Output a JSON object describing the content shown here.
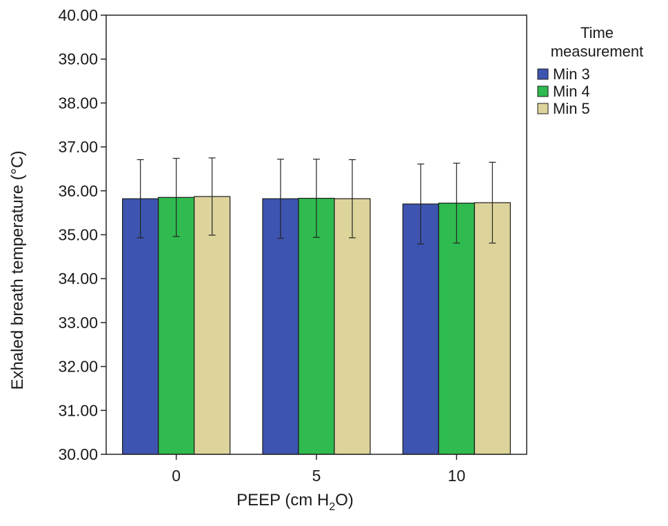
{
  "chart_data": {
    "type": "bar",
    "title": "",
    "xlabel": "PEEP (cm H2O)",
    "xlabel_parts": {
      "main": "PEEP (cm H",
      "sub": "2",
      "tail": "O)"
    },
    "ylabel": "Exhaled breath temperature (°C)",
    "ylim": [
      30,
      40
    ],
    "yticks": [
      "30.00",
      "31.00",
      "32.00",
      "33.00",
      "34.00",
      "35.00",
      "36.00",
      "37.00",
      "38.00",
      "39.00",
      "40.00"
    ],
    "categories": [
      "0",
      "5",
      "10"
    ],
    "series": [
      {
        "name": "Min 3",
        "color": "#3d55b0",
        "values": [
          35.82,
          35.82,
          35.7
        ],
        "error": [
          0.89,
          0.9,
          0.91
        ]
      },
      {
        "name": "Min 4",
        "color": "#2fbb4f",
        "values": [
          35.85,
          35.83,
          35.72
        ],
        "error": [
          0.89,
          0.89,
          0.91
        ]
      },
      {
        "name": "Min 5",
        "color": "#ddd49b",
        "values": [
          35.87,
          35.82,
          35.73
        ],
        "error": [
          0.88,
          0.89,
          0.92
        ]
      }
    ],
    "legend": {
      "title_line1": "Time",
      "title_line2": "measurement",
      "position": "right"
    },
    "grid": false
  }
}
